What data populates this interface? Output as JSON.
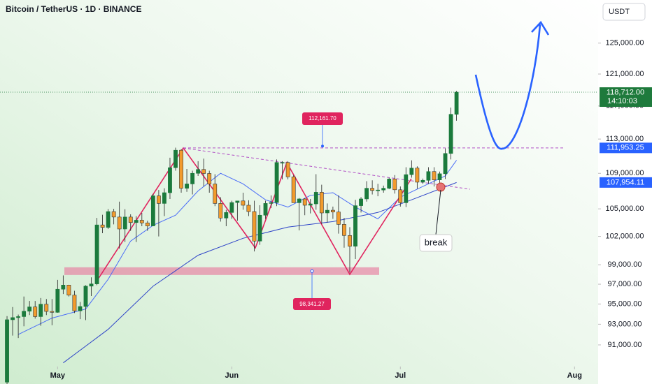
{
  "chart_data": {
    "type": "candlestick",
    "title": "Bitcoin / TetherUS · 1D · BINANCE",
    "currency": "USDT",
    "log_scale": true,
    "up_color": "#1b7a3c",
    "down_color": "#f29b2d",
    "open": [
      87500,
      93440,
      93650,
      93750,
      94280,
      94710,
      93750,
      94980,
      94260,
      94170,
      96490,
      96910,
      95890,
      94320,
      94750,
      96800,
      97030,
      103240,
      102970,
      104700,
      104100,
      102800,
      104100,
      103500,
      103750,
      103460,
      103130,
      106450,
      105600,
      106800,
      109650,
      111680,
      107300,
      107790,
      109000,
      109440,
      108980,
      107780,
      105600,
      103990,
      104600,
      105700,
      105880,
      105400,
      104700,
      101500,
      104300,
      105600,
      105700,
      110250,
      110250,
      108600,
      105680,
      106100,
      105400,
      105550,
      106850,
      104550,
      104850,
      104650,
      103300,
      102100,
      100950,
      105350,
      106100,
      107300,
      107050,
      107100,
      107300,
      108350,
      107130,
      105680,
      108850,
      109600,
      107990,
      108200,
      109200,
      108250,
      108950,
      111300,
      115980
    ],
    "high": [
      93800,
      94700,
      93950,
      95750,
      95300,
      95300,
      95600,
      95500,
      95500,
      97440,
      97900,
      96940,
      96330,
      95200,
      96900,
      97700,
      104000,
      104350,
      104980,
      105000,
      105800,
      104960,
      104400,
      104200,
      104550,
      103700,
      106660,
      107100,
      107300,
      110800,
      111980,
      111800,
      109500,
      109300,
      110400,
      110700,
      109300,
      108900,
      106300,
      104900,
      105900,
      105900,
      106800,
      105950,
      105900,
      105400,
      105900,
      106500,
      110600,
      110400,
      110400,
      108800,
      106200,
      106200,
      106100,
      108900,
      107700,
      105600,
      105250,
      106500,
      104000,
      103000,
      106000,
      106300,
      108100,
      108200,
      107800,
      107600,
      108500,
      108800,
      107500,
      109700,
      110500,
      109800,
      108400,
      109700,
      109700,
      109200,
      111900,
      116800,
      118870
    ],
    "low": [
      87100,
      91900,
      91660,
      92800,
      93900,
      93550,
      92850,
      93900,
      92900,
      94130,
      96000,
      95750,
      94100,
      93500,
      93400,
      95800,
      96900,
      102350,
      102800,
      103300,
      100700,
      101400,
      102600,
      101400,
      103100,
      102600,
      103100,
      102000,
      104200,
      106100,
      109300,
      106800,
      106900,
      106600,
      108700,
      107500,
      106800,
      105300,
      103600,
      103100,
      103900,
      103700,
      104900,
      104200,
      100400,
      101100,
      103900,
      105100,
      105300,
      108300,
      108300,
      105700,
      102650,
      104300,
      104500,
      104900,
      103350,
      103500,
      103900,
      102300,
      100800,
      98200,
      99600,
      104600,
      105800,
      106600,
      106400,
      106800,
      107200,
      106700,
      105250,
      105200,
      108500,
      107250,
      107800,
      107800,
      107500,
      107400,
      108350,
      110600,
      115200
    ],
    "close": [
      93440,
      93650,
      93750,
      94280,
      94710,
      93750,
      94980,
      94260,
      94170,
      96490,
      96910,
      95890,
      94320,
      94750,
      96800,
      97030,
      103240,
      102970,
      104700,
      104100,
      102800,
      104100,
      103500,
      103750,
      103460,
      103130,
      106450,
      105600,
      106800,
      109650,
      111680,
      107300,
      107790,
      109000,
      109440,
      108980,
      107780,
      105600,
      103990,
      104600,
      105700,
      105880,
      105400,
      104700,
      101500,
      104300,
      105600,
      105700,
      110250,
      110250,
      108600,
      105680,
      106100,
      105400,
      105550,
      106850,
      104550,
      104850,
      104650,
      103300,
      102100,
      100950,
      105350,
      106100,
      107300,
      107050,
      107100,
      107300,
      108350,
      107130,
      105680,
      108850,
      109600,
      107990,
      108200,
      109200,
      108250,
      108950,
      111300,
      115980,
      118712
    ],
    "xlim": [
      -1.25,
      105.2
    ],
    "xticks": [
      {
        "value": 9,
        "label": "May"
      },
      {
        "value": 40,
        "label": "Jun"
      },
      {
        "value": 70,
        "label": "Jul"
      },
      {
        "value": 101,
        "label": "Aug"
      }
    ],
    "ylim": [
      88950,
      130800
    ],
    "yticks": [
      {
        "value": 125000,
        "label": "125,000.00"
      },
      {
        "value": 121000,
        "label": "121,000.00"
      },
      {
        "value": 117000,
        "label": "117,000.00"
      },
      {
        "value": 113000,
        "label": "113,000.00"
      },
      {
        "value": 109000,
        "label": "109,000.00"
      },
      {
        "value": 105000,
        "label": "105,000.00"
      },
      {
        "value": 102000,
        "label": "102,000.00"
      },
      {
        "value": 99000,
        "label": "99,000.00"
      },
      {
        "value": 97000,
        "label": "97,000.00"
      },
      {
        "value": 95000,
        "label": "95,000.00"
      },
      {
        "value": 93000,
        "label": "93,000.00"
      },
      {
        "value": 91000,
        "label": "91,000.00"
      }
    ],
    "moving_averages": [
      {
        "color": "#4a6cf7",
        "x": [
          2,
          8,
          14,
          18,
          22,
          26,
          30,
          34,
          38,
          42,
          46,
          50,
          54,
          58,
          62,
          66,
          70,
          74,
          78,
          80
        ],
        "values": [
          92000,
          93600,
          94500,
          97500,
          101500,
          103200,
          104300,
          107000,
          109000,
          107800,
          106000,
          105200,
          106500,
          106800,
          105200,
          103900,
          106300,
          107500,
          108700,
          110500
        ]
      },
      {
        "color": "#2f45c8",
        "x": [
          10,
          18,
          26,
          34,
          42,
          50,
          58,
          66,
          72,
          80
        ],
        "values": [
          89300,
          92500,
          96800,
          100000,
          101800,
          103000,
          103600,
          104600,
          106000,
          107954.11
        ]
      }
    ],
    "price_labels": [
      {
        "value": 118712,
        "label": "118,712.00",
        "sub": "14:10:03",
        "color": "#1e7a3c"
      },
      {
        "value": 111953.25,
        "label": "111,953.25",
        "color": "#2962ff"
      },
      {
        "value": 107954.11,
        "label": "107,954.11",
        "color": "#2962ff"
      }
    ],
    "annotations": [
      {
        "value": 112161.7,
        "label": "112,161.70"
      },
      {
        "value": 98341.27,
        "label": "98,341.27"
      }
    ],
    "note": "break"
  }
}
